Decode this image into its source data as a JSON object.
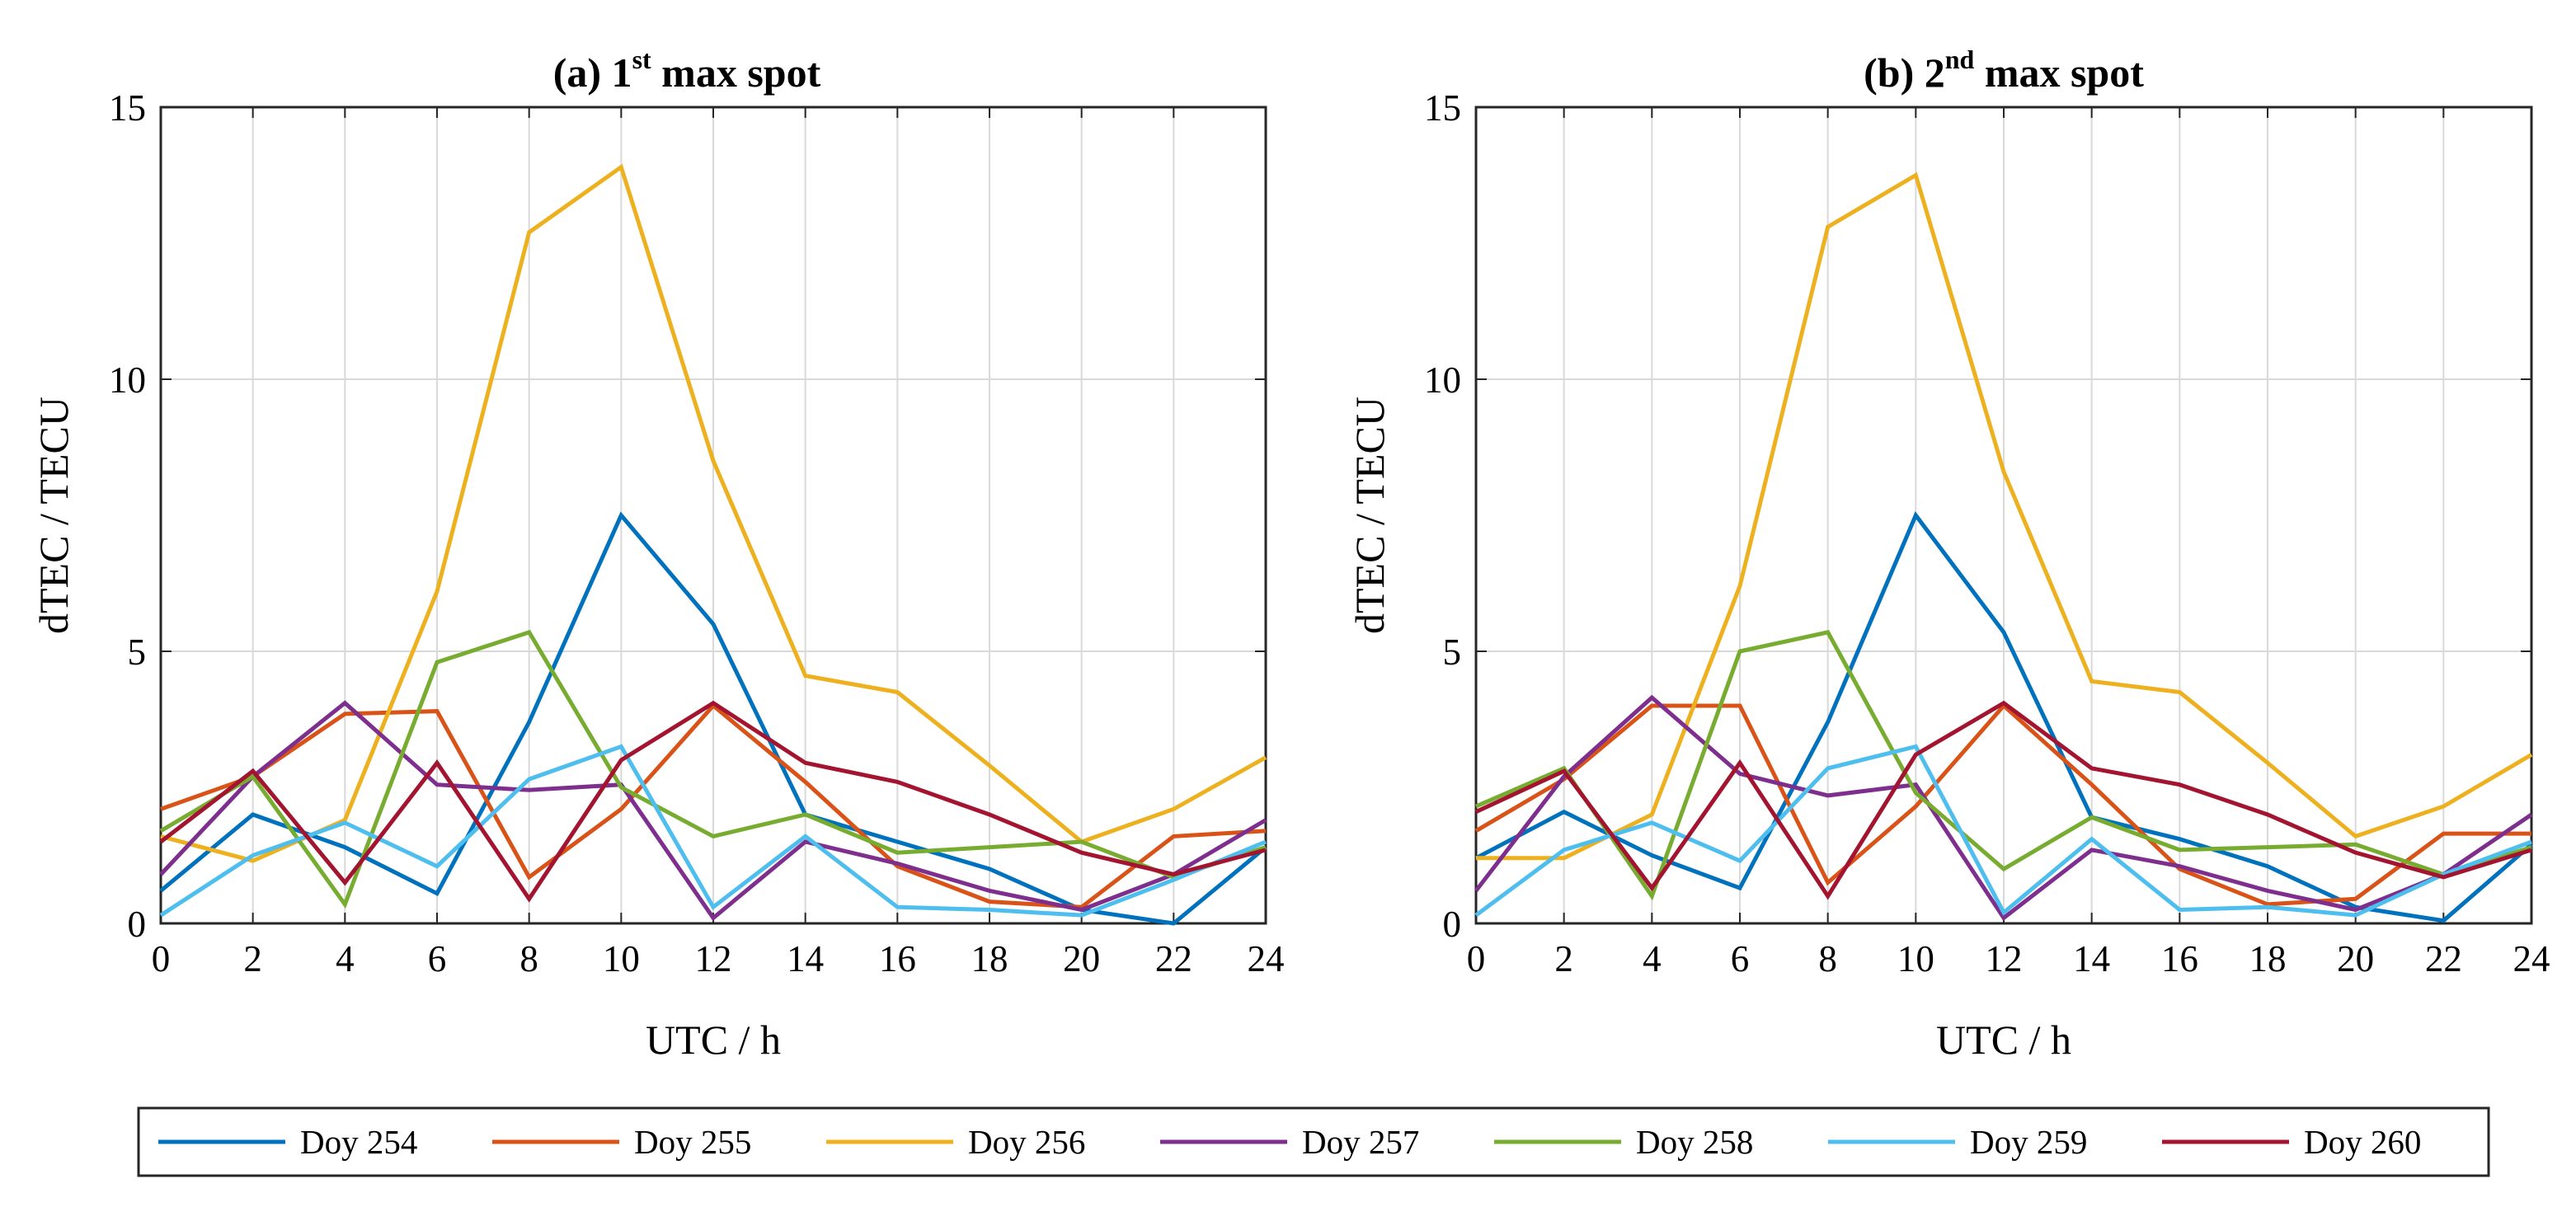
{
  "colors": {
    "Doy 254": "#0072BD",
    "Doy 255": "#D95319",
    "Doy 256": "#EDB120",
    "Doy 257": "#7E2F8E",
    "Doy 258": "#77AC30",
    "Doy 259": "#4DBEEE",
    "Doy 260": "#A2142F"
  },
  "legend": {
    "entries": [
      "Doy 254",
      "Doy 255",
      "Doy 256",
      "Doy 257",
      "Doy 258",
      "Doy 259",
      "Doy 260"
    ]
  },
  "chart_data": [
    {
      "type": "line",
      "title": "(a) 1st max spot",
      "title_main": "(a) 1",
      "title_sup": "st",
      "title_rest": " max spot",
      "xlabel": "UTC / h",
      "ylabel": "dTEC / TECU",
      "xlim": [
        0,
        24
      ],
      "ylim": [
        0,
        15
      ],
      "xticks": [
        0,
        2,
        4,
        6,
        8,
        10,
        12,
        14,
        16,
        18,
        20,
        22,
        24
      ],
      "yticks": [
        0,
        5,
        10,
        15
      ],
      "grid": true,
      "x": [
        0,
        2,
        4,
        6,
        8,
        10,
        12,
        14,
        16,
        18,
        20,
        22,
        24
      ],
      "series": [
        {
          "name": "Doy 254",
          "values": [
            0.6,
            2.0,
            1.4,
            0.55,
            3.7,
            7.5,
            5.5,
            2.0,
            1.5,
            1.0,
            0.25,
            0.0,
            1.4
          ]
        },
        {
          "name": "Doy 255",
          "values": [
            2.1,
            2.7,
            3.85,
            3.9,
            0.85,
            2.1,
            4.0,
            2.6,
            1.05,
            0.4,
            0.3,
            1.6,
            1.7
          ]
        },
        {
          "name": "Doy 256",
          "values": [
            1.6,
            1.15,
            1.9,
            6.1,
            12.7,
            13.9,
            8.5,
            4.55,
            4.25,
            2.9,
            1.5,
            2.1,
            3.05
          ]
        },
        {
          "name": "Doy 257",
          "values": [
            0.9,
            2.7,
            4.05,
            2.55,
            2.45,
            2.55,
            0.1,
            1.5,
            1.1,
            0.6,
            0.25,
            0.9,
            1.9
          ]
        },
        {
          "name": "Doy 258",
          "values": [
            1.7,
            2.7,
            0.35,
            4.8,
            5.35,
            2.5,
            1.6,
            2.0,
            1.3,
            1.4,
            1.5,
            0.85,
            1.4
          ]
        },
        {
          "name": "Doy 259",
          "values": [
            0.15,
            1.25,
            1.85,
            1.05,
            2.65,
            3.25,
            0.3,
            1.6,
            0.3,
            0.25,
            0.15,
            0.8,
            1.5
          ]
        },
        {
          "name": "Doy 260",
          "values": [
            1.5,
            2.8,
            0.75,
            2.95,
            0.45,
            3.0,
            4.05,
            2.95,
            2.6,
            2.0,
            1.3,
            0.9,
            1.35
          ]
        }
      ]
    },
    {
      "type": "line",
      "title": "(b) 2nd max spot",
      "title_main": "(b) 2",
      "title_sup": "nd",
      "title_rest": " max spot",
      "xlabel": "UTC / h",
      "ylabel": "dTEC / TECU",
      "xlim": [
        0,
        24
      ],
      "ylim": [
        0,
        15
      ],
      "xticks": [
        0,
        2,
        4,
        6,
        8,
        10,
        12,
        14,
        16,
        18,
        20,
        22,
        24
      ],
      "yticks": [
        0,
        5,
        10,
        15
      ],
      "grid": true,
      "x": [
        0,
        2,
        4,
        6,
        8,
        10,
        12,
        14,
        16,
        18,
        20,
        22,
        24
      ],
      "series": [
        {
          "name": "Doy 254",
          "values": [
            1.2,
            2.05,
            1.25,
            0.65,
            3.7,
            7.5,
            5.35,
            1.95,
            1.55,
            1.05,
            0.3,
            0.05,
            1.45
          ]
        },
        {
          "name": "Doy 255",
          "values": [
            1.7,
            2.65,
            4.0,
            4.0,
            0.75,
            2.15,
            4.0,
            2.55,
            1.0,
            0.35,
            0.45,
            1.65,
            1.65
          ]
        },
        {
          "name": "Doy 256",
          "values": [
            1.2,
            1.2,
            2.0,
            6.2,
            12.8,
            13.75,
            8.3,
            4.45,
            4.25,
            2.95,
            1.6,
            2.15,
            3.1
          ]
        },
        {
          "name": "Doy 257",
          "values": [
            0.6,
            2.7,
            4.15,
            2.75,
            2.35,
            2.55,
            0.1,
            1.35,
            1.05,
            0.6,
            0.25,
            0.9,
            2.0
          ]
        },
        {
          "name": "Doy 258",
          "values": [
            2.15,
            2.85,
            0.5,
            5.0,
            5.35,
            2.4,
            1.0,
            1.95,
            1.35,
            1.4,
            1.45,
            0.9,
            1.4
          ]
        },
        {
          "name": "Doy 259",
          "values": [
            0.15,
            1.35,
            1.85,
            1.15,
            2.85,
            3.25,
            0.2,
            1.55,
            0.25,
            0.3,
            0.15,
            0.9,
            1.5
          ]
        },
        {
          "name": "Doy 260",
          "values": [
            2.05,
            2.8,
            0.65,
            2.95,
            0.5,
            3.1,
            4.05,
            2.85,
            2.55,
            2.0,
            1.3,
            0.85,
            1.35
          ]
        }
      ]
    }
  ]
}
